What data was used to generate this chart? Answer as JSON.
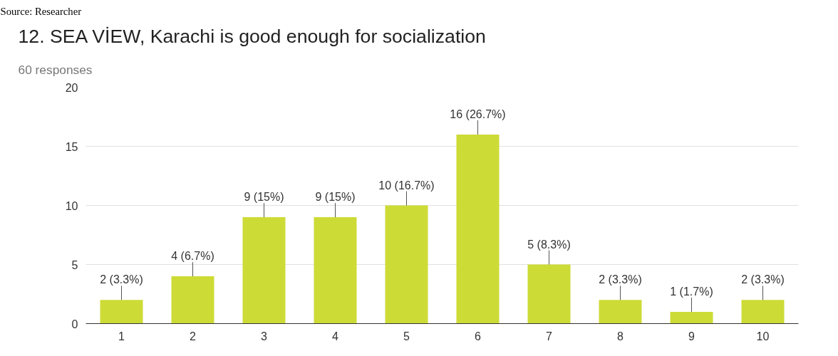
{
  "chart_data": {
    "type": "bar",
    "title": "12. SEA VİEW, Karachi is good enough for socialization",
    "subtitle": "60 responses",
    "annotations": [
      "Source: Researcher"
    ],
    "categories": [
      "1",
      "2",
      "3",
      "4",
      "5",
      "6",
      "7",
      "8",
      "9",
      "10"
    ],
    "values": [
      2,
      4,
      9,
      9,
      10,
      16,
      5,
      2,
      1,
      2
    ],
    "value_labels": [
      "2 (3.3%)",
      "4 (6.7%)",
      "9 (15%)",
      "9 (15%)",
      "10 (16.7%)",
      "16 (26.7%)",
      "5 (8.3%)",
      "2 (3.3%)",
      "1 (1.7%)",
      "2 (3.3%)"
    ],
    "color": "#cddb36",
    "ylim": [
      0,
      20
    ],
    "yticks": [
      0,
      5,
      10,
      15,
      20
    ],
    "grid": "y"
  }
}
